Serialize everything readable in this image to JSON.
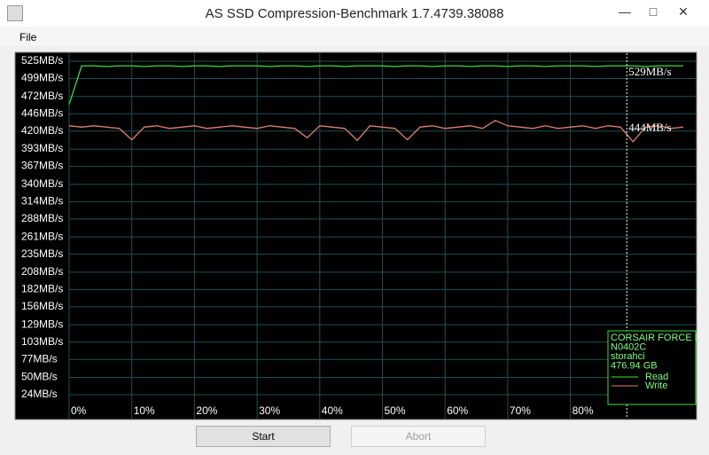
{
  "window": {
    "title": "AS SSD Compression-Benchmark 1.7.4739.38088"
  },
  "menu": [
    "File"
  ],
  "buttons": [
    "Start",
    "Abort"
  ],
  "chart_data": {
    "type": "line",
    "x": [
      0,
      2,
      4,
      6,
      8,
      10,
      12,
      14,
      16,
      18,
      20,
      22,
      24,
      26,
      28,
      30,
      32,
      34,
      36,
      38,
      40,
      42,
      44,
      46,
      48,
      50,
      52,
      54,
      56,
      58,
      60,
      62,
      64,
      66,
      68,
      70,
      72,
      74,
      76,
      78,
      80,
      82,
      84,
      86,
      88,
      90,
      92,
      94,
      96,
      98
    ],
    "series": [
      {
        "name": "Write",
        "color": "#e08070",
        "values": [
          428,
          426,
          428,
          426,
          424,
          407,
          426,
          428,
          424,
          426,
          428,
          424,
          426,
          428,
          426,
          424,
          428,
          426,
          424,
          410,
          428,
          426,
          424,
          406,
          428,
          426,
          424,
          407,
          426,
          428,
          424,
          426,
          428,
          424,
          436,
          428,
          426,
          424,
          428,
          424,
          426,
          428,
          424,
          428,
          426,
          404,
          426,
          428,
          424,
          426
        ]
      },
      {
        "name": "Read",
        "color": "#3cdc3c",
        "values": [
          460,
          518,
          518,
          517,
          518,
          518,
          517,
          518,
          518,
          517,
          518,
          518,
          517,
          518,
          518,
          518,
          517,
          518,
          518,
          517,
          518,
          518,
          517,
          518,
          518,
          518,
          517,
          518,
          518,
          517,
          518,
          518,
          517,
          518,
          518,
          517,
          518,
          518,
          517,
          518,
          518,
          518,
          517,
          518,
          518,
          518,
          517,
          518,
          518,
          518
        ]
      }
    ],
    "xlim": [
      0,
      100
    ],
    "xticks": [
      {
        "value": 0,
        "label": "0%"
      },
      {
        "value": 10,
        "label": "10%"
      },
      {
        "value": 20,
        "label": "20%"
      },
      {
        "value": 30,
        "label": "30%"
      },
      {
        "value": 40,
        "label": "40%"
      },
      {
        "value": 50,
        "label": "50%"
      },
      {
        "value": 60,
        "label": "60%"
      },
      {
        "value": 70,
        "label": "70%"
      },
      {
        "value": 80,
        "label": "80%"
      }
    ],
    "ylim": [
      -12,
      537
    ],
    "yticks": [
      {
        "value": 525,
        "label": "525MB/s"
      },
      {
        "value": 499,
        "label": "499MB/s"
      },
      {
        "value": 472,
        "label": "472MB/s"
      },
      {
        "value": 446,
        "label": "446MB/s"
      },
      {
        "value": 420,
        "label": "420MB/s"
      },
      {
        "value": 393,
        "label": "393MB/s"
      },
      {
        "value": 367,
        "label": "367MB/s"
      },
      {
        "value": 340,
        "label": "340MB/s"
      },
      {
        "value": 314,
        "label": "314MB/s"
      },
      {
        "value": 288,
        "label": "288MB/s"
      },
      {
        "value": 261,
        "label": "261MB/s"
      },
      {
        "value": 235,
        "label": "235MB/s"
      },
      {
        "value": 208,
        "label": "208MB/s"
      },
      {
        "value": 182,
        "label": "182MB/s"
      },
      {
        "value": 156,
        "label": "156MB/s"
      },
      {
        "value": 129,
        "label": "129MB/s"
      },
      {
        "value": 103,
        "label": "103MB/s"
      },
      {
        "value": 77,
        "label": "77MB/s"
      },
      {
        "value": 50,
        "label": "50MB/s"
      },
      {
        "value": 24,
        "label": "24MB/s"
      }
    ],
    "grid": true,
    "cursor_x": 89,
    "annotations": [
      "529MB/s",
      "444MB/s"
    ],
    "drive_info": [
      "CORSAIR FORCE L",
      "N0402C",
      "storahci",
      "476.94 GB"
    ]
  }
}
